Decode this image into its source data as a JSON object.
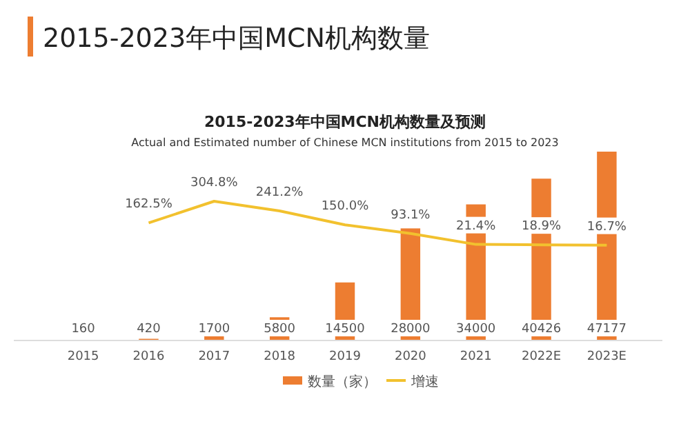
{
  "chart_data": {
    "type": "bar",
    "title": "2015-2023年中国MCN机构数量",
    "subtitle": "2015-2023年中国MCN机构数量及预测",
    "annotations": [
      "Actual and Estimated number of Chinese MCN institutions from 2015 to 2023"
    ],
    "categories": [
      "2015",
      "2016",
      "2017",
      "2018",
      "2019",
      "2020",
      "2021",
      "2022E",
      "2023E"
    ],
    "series": [
      {
        "name": "数量（家）",
        "color": "#ed7d31",
        "values": [
          160,
          420,
          1700,
          5800,
          14500,
          28000,
          34000,
          40426,
          47177
        ]
      },
      {
        "name": "增速",
        "type": "line",
        "axis": "y2",
        "color": "#f2c12e",
        "values": [
          null,
          162.5,
          304.8,
          241.2,
          150.0,
          93.1,
          21.4,
          18.9,
          16.7
        ],
        "value_labels": [
          null,
          "162.5%",
          "304.8%",
          "241.2%",
          "150.0%",
          "93.1%",
          "21.4%",
          "18.9%",
          "16.7%"
        ]
      }
    ],
    "data_labels": true,
    "legend": "bottom",
    "grid": false
  }
}
